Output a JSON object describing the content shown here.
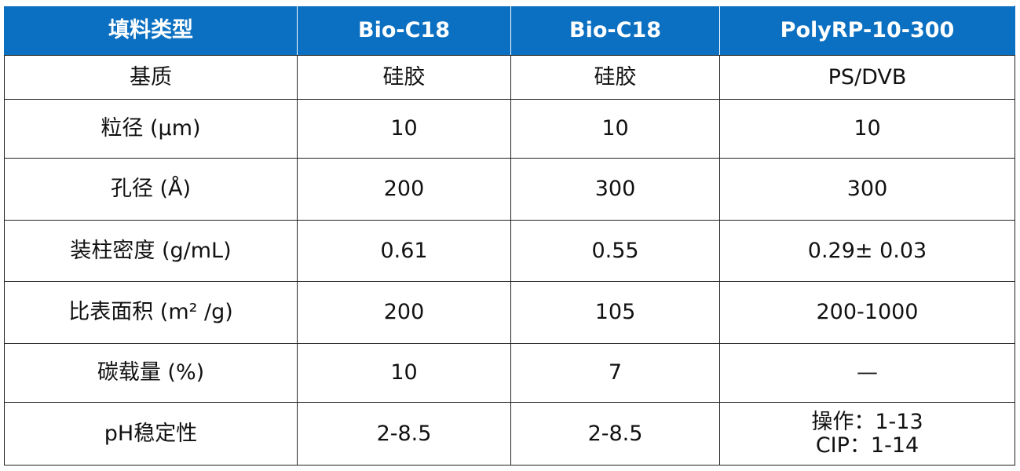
{
  "table": {
    "header": [
      "填料类型",
      "Bio-C18",
      "Bio-C18",
      "PolyRP-10-300"
    ],
    "rows": [
      [
        "基质",
        "硅胶",
        "硅胶",
        "PS/DVB"
      ],
      [
        "粒径 (µm)",
        "10",
        "10",
        "10"
      ],
      [
        "孔径 (Å)",
        "200",
        "300",
        "300"
      ],
      [
        "装柱密度 (g/mL)",
        "0.61",
        "0.55",
        "0.29± 0.03"
      ],
      [
        "比表面积 (m² /g)",
        "200",
        "105",
        "200-1000"
      ],
      [
        "碳载量 (%)",
        "10",
        "7",
        "—"
      ],
      [
        "pH稳定性",
        "2-8.5",
        "2-8.5",
        [
          "操作：1-13",
          "CIP：1-14"
        ]
      ]
    ]
  }
}
